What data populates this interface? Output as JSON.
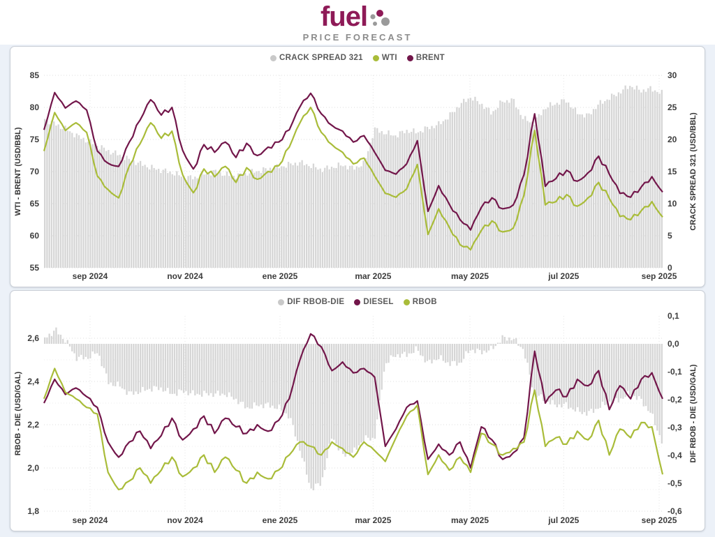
{
  "header": {
    "logo_text": "fuel",
    "tagline": "PRICE FORECAST"
  },
  "colors": {
    "brand_magenta": "#8E1A57",
    "maroon": "#72164A",
    "olive": "#A9BC39",
    "bar_gray": "#D6D6D6",
    "legend_dot_gray": "#C9C9C9",
    "page_bg": "#ECF1F8",
    "grid": "#DEDEDE"
  },
  "x_axis": {
    "labels": [
      "sep 2024",
      "nov 2024",
      "ene 2025",
      "mar 2025",
      "may 2025",
      "jul 2025",
      "sep 2025"
    ],
    "fractions": [
      0.0745,
      0.228,
      0.3815,
      0.532,
      0.6885,
      0.84,
      0.9944
    ]
  },
  "chart_data": [
    {
      "type": "bar+line combo",
      "name": "crude-oil-chart",
      "legend": [
        {
          "label": "CRACK SPREAD 321",
          "color": "legend_dot_gray"
        },
        {
          "label": "WTI",
          "color": "olive"
        },
        {
          "label": "BRENT",
          "color": "maroon"
        }
      ],
      "left_axis": {
        "title": "WTI - BRENT (USD/BBL)",
        "min": 55,
        "max": 85,
        "ticks": [
          {
            "v": 85,
            "label": "85"
          },
          {
            "v": 80,
            "label": "80"
          },
          {
            "v": 75,
            "label": "75"
          },
          {
            "v": 70,
            "label": "70"
          },
          {
            "v": 65,
            "label": "65"
          },
          {
            "v": 60,
            "label": "60"
          },
          {
            "v": 55,
            "label": "55"
          }
        ]
      },
      "right_axis": {
        "title": "CRACK SPREAD 321 (USD/BBL)",
        "min": 0,
        "max": 30,
        "ticks": [
          {
            "v": 30,
            "label": "30"
          },
          {
            "v": 25,
            "label": "25"
          },
          {
            "v": 20,
            "label": "20"
          },
          {
            "v": 15,
            "label": "15"
          },
          {
            "v": 10,
            "label": "10"
          },
          {
            "v": 5,
            "label": "5"
          },
          {
            "v": 0,
            "label": "0"
          }
        ]
      },
      "series": [
        {
          "name": "CRACK SPREAD 321",
          "kind": "bar",
          "axis": "right",
          "color": "bar_gray",
          "values": [
            23.2,
            22.4,
            21.6,
            20.6,
            19.8,
            19.0,
            18.2,
            17.6,
            16.8,
            16.2,
            15.6,
            15.2,
            14.8,
            14.2,
            14.0,
            14.6,
            15.0,
            14.5,
            14.3,
            14.7,
            15.1,
            15.4,
            15.7,
            16.1,
            16.4,
            15.9,
            15.3,
            15.7,
            16.0,
            15.5,
            16.2,
            21.6,
            21.0,
            20.6,
            21.4,
            21.1,
            21.8,
            22.3,
            23.6,
            25.4,
            26.6,
            25.6,
            24.1,
            25.9,
            26.2,
            23.2,
            22.6,
            24.9,
            25.6,
            26.1,
            24.2,
            23.6,
            25.4,
            26.4,
            27.3,
            28.4,
            27.6,
            27.9,
            27.2
          ]
        },
        {
          "name": "WTI",
          "kind": "line",
          "axis": "left",
          "color": "olive",
          "values": [
            73.2,
            79.2,
            76.4,
            77.6,
            76.1,
            69.3,
            67.2,
            65.9,
            70.9,
            74.3,
            77.6,
            75.2,
            76.3,
            69.5,
            66.7,
            70.4,
            69.2,
            70.8,
            68.3,
            70.6,
            68.8,
            70.0,
            70.9,
            73.8,
            77.6,
            80.0,
            76.1,
            74.2,
            73.0,
            71.2,
            72.1,
            69.3,
            66.6,
            66.0,
            67.3,
            71.1,
            60.2,
            64.2,
            61.3,
            58.6,
            57.8,
            60.8,
            62.3,
            60.6,
            61.2,
            66.3,
            76.4,
            64.8,
            65.3,
            66.4,
            64.6,
            65.9,
            68.3,
            65.8,
            63.0,
            62.5,
            63.9,
            65.3,
            62.9
          ]
        },
        {
          "name": "BRENT",
          "kind": "line",
          "axis": "left",
          "color": "maroon",
          "values": [
            76.5,
            82.3,
            79.9,
            81.0,
            79.6,
            73.2,
            71.3,
            70.8,
            74.6,
            78.0,
            81.2,
            78.8,
            80.0,
            73.3,
            70.4,
            74.2,
            73.0,
            74.6,
            72.2,
            74.4,
            72.5,
            73.8,
            74.6,
            76.5,
            80.1,
            82.2,
            79.0,
            77.2,
            76.3,
            74.6,
            75.6,
            73.0,
            70.2,
            69.6,
            71.2,
            74.8,
            63.8,
            67.8,
            64.9,
            62.5,
            60.9,
            64.4,
            65.9,
            64.2,
            64.8,
            69.5,
            79.0,
            67.7,
            68.9,
            70.2,
            68.5,
            69.8,
            72.4,
            69.6,
            66.6,
            66.0,
            67.6,
            69.2,
            66.8
          ]
        }
      ]
    },
    {
      "type": "bar+line combo",
      "name": "refined-products-chart",
      "legend": [
        {
          "label": "DIF RBOB-DIE",
          "color": "legend_dot_gray"
        },
        {
          "label": "DIESEL",
          "color": "maroon"
        },
        {
          "label": "RBOB",
          "color": "olive"
        }
      ],
      "left_axis": {
        "title": "RBOB - DIE (USD/GAL)",
        "min": 1.8,
        "max": 2.6,
        "ticks": [
          {
            "v": 2.6,
            "label": "2,6"
          },
          {
            "v": 2.4,
            "label": "2,4"
          },
          {
            "v": 2.2,
            "label": "2,2"
          },
          {
            "v": 2.0,
            "label": "2,0"
          },
          {
            "v": 1.8,
            "label": "1,8"
          }
        ]
      },
      "right_axis": {
        "title": "DIF RBOB - DIE (USD/GAL)",
        "min": -0.6,
        "max": 0.1,
        "ticks": [
          {
            "v": 0.1,
            "label": "0,1"
          },
          {
            "v": 0.0,
            "label": "0,0"
          },
          {
            "v": -0.1,
            "label": "-0,1"
          },
          {
            "v": -0.2,
            "label": "-0,2"
          },
          {
            "v": -0.3,
            "label": "-0,3"
          },
          {
            "v": -0.4,
            "label": "-0,4"
          },
          {
            "v": -0.5,
            "label": "-0,5"
          },
          {
            "v": -0.6,
            "label": "-0,6"
          }
        ]
      },
      "series": [
        {
          "name": "DIF RBOB-DIE",
          "kind": "bar",
          "axis": "right",
          "color": "bar_gray",
          "values": [
            0.02,
            0.05,
            0.01,
            -0.05,
            -0.05,
            -0.03,
            -0.14,
            -0.15,
            -0.18,
            -0.17,
            -0.16,
            -0.16,
            -0.18,
            -0.17,
            -0.18,
            -0.18,
            -0.18,
            -0.18,
            -0.2,
            -0.23,
            -0.22,
            -0.22,
            -0.23,
            -0.26,
            -0.38,
            -0.52,
            -0.5,
            -0.33,
            -0.4,
            -0.39,
            -0.34,
            -0.34,
            -0.07,
            -0.04,
            -0.04,
            -0.02,
            -0.07,
            -0.05,
            -0.07,
            -0.07,
            -0.02,
            -0.03,
            -0.02,
            0.02,
            0.02,
            -0.02,
            -0.18,
            -0.2,
            -0.22,
            -0.22,
            -0.24,
            -0.25,
            -0.23,
            -0.21,
            -0.2,
            -0.18,
            -0.2,
            -0.25,
            -0.35
          ]
        },
        {
          "name": "DIESEL",
          "kind": "line",
          "axis": "left",
          "color": "maroon",
          "values": [
            2.3,
            2.41,
            2.34,
            2.37,
            2.33,
            2.28,
            2.12,
            2.05,
            2.12,
            2.17,
            2.09,
            2.15,
            2.23,
            2.13,
            2.18,
            2.24,
            2.16,
            2.23,
            2.19,
            2.16,
            2.2,
            2.17,
            2.22,
            2.32,
            2.5,
            2.62,
            2.56,
            2.45,
            2.49,
            2.44,
            2.46,
            2.42,
            2.1,
            2.18,
            2.28,
            2.31,
            2.04,
            2.11,
            2.06,
            2.12,
            2.0,
            2.19,
            2.13,
            2.04,
            2.07,
            2.14,
            2.54,
            2.3,
            2.36,
            2.33,
            2.41,
            2.38,
            2.45,
            2.27,
            2.38,
            2.32,
            2.41,
            2.44,
            2.32
          ]
        },
        {
          "name": "RBOB",
          "kind": "line",
          "axis": "left",
          "color": "olive",
          "values": [
            2.32,
            2.46,
            2.35,
            2.32,
            2.28,
            2.25,
            1.98,
            1.9,
            1.94,
            2.0,
            1.93,
            1.99,
            2.05,
            1.96,
            2.0,
            2.06,
            1.98,
            2.05,
            1.99,
            1.93,
            1.98,
            1.95,
            1.99,
            2.06,
            2.12,
            2.1,
            2.06,
            2.12,
            2.09,
            2.05,
            2.12,
            2.08,
            2.03,
            2.14,
            2.24,
            2.29,
            1.97,
            2.06,
            1.99,
            2.05,
            1.98,
            2.16,
            2.11,
            2.06,
            2.09,
            2.12,
            2.36,
            2.1,
            2.14,
            2.11,
            2.17,
            2.13,
            2.22,
            2.06,
            2.18,
            2.14,
            2.21,
            2.19,
            1.97
          ]
        }
      ]
    }
  ]
}
